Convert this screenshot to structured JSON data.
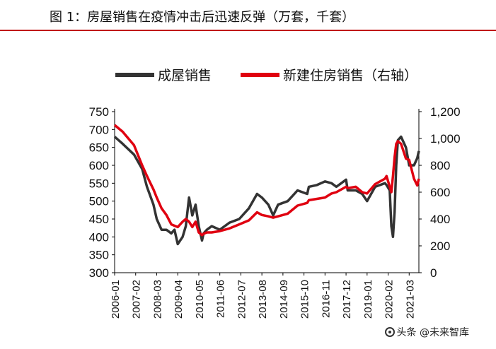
{
  "header": {
    "title": "图 1：房屋销售在疫情冲击后迅速反弹（万套，千套）"
  },
  "watermark": {
    "text": "头条 @未来智库"
  },
  "chart_data": {
    "type": "line",
    "title": "图 1：房屋销售在疫情冲击后迅速反弹（万套，千套）",
    "legend_position": "top",
    "x_tick_labels": [
      "2006-01",
      "2007-02",
      "2008-03",
      "2009-04",
      "2010-05",
      "2011-06",
      "2012-07",
      "2013-08",
      "2014-09",
      "2015-10",
      "2016-11",
      "2017-12",
      "2019-01",
      "2020-02",
      "2021-03"
    ],
    "y_left": {
      "ylim": [
        300,
        750
      ],
      "ticks": [
        "300",
        "350",
        "400",
        "450",
        "500",
        "550",
        "600",
        "650",
        "700",
        "750"
      ]
    },
    "y_right": {
      "ylim": [
        0,
        1200
      ],
      "ticks": [
        "0",
        "200",
        "400",
        "600",
        "800",
        "1,000",
        "1,200"
      ]
    },
    "series": [
      {
        "name": "成屋销售",
        "axis": "left",
        "color": "#333333",
        "x": [
          "2006-01",
          "2006-06",
          "2007-01",
          "2007-06",
          "2007-09",
          "2008-01",
          "2008-03",
          "2008-06",
          "2008-09",
          "2008-12",
          "2009-02",
          "2009-04",
          "2009-07",
          "2009-09",
          "2009-11",
          "2010-01",
          "2010-03",
          "2010-05",
          "2010-07",
          "2010-08",
          "2010-10",
          "2011-01",
          "2011-06",
          "2011-12",
          "2012-06",
          "2012-12",
          "2013-05",
          "2013-08",
          "2013-12",
          "2014-03",
          "2014-06",
          "2014-12",
          "2015-06",
          "2015-12",
          "2016-01",
          "2016-06",
          "2016-11",
          "2017-03",
          "2017-06",
          "2017-12",
          "2018-01",
          "2018-06",
          "2018-10",
          "2019-01",
          "2019-06",
          "2019-12",
          "2020-01",
          "2020-03",
          "2020-04",
          "2020-05",
          "2020-06",
          "2020-07",
          "2020-08",
          "2020-10",
          "2021-01",
          "2021-03",
          "2021-06",
          "2021-08",
          "2021-09"
        ],
        "values": [
          680,
          660,
          630,
          590,
          540,
          490,
          450,
          420,
          420,
          410,
          420,
          380,
          400,
          430,
          510,
          460,
          490,
          430,
          390,
          410,
          420,
          430,
          420,
          440,
          450,
          480,
          520,
          510,
          490,
          460,
          490,
          500,
          530,
          520,
          540,
          545,
          555,
          550,
          540,
          560,
          530,
          530,
          520,
          500,
          540,
          550,
          545,
          530,
          430,
          400,
          470,
          600,
          670,
          680,
          650,
          600,
          600,
          620,
          640
        ]
      },
      {
        "name": "新建住房销售（右轴）",
        "axis": "right",
        "color": "#e00010",
        "x": [
          "2006-01",
          "2006-06",
          "2007-01",
          "2007-06",
          "2007-09",
          "2008-01",
          "2008-03",
          "2008-06",
          "2008-09",
          "2008-12",
          "2009-02",
          "2009-04",
          "2009-07",
          "2009-09",
          "2009-11",
          "2010-01",
          "2010-03",
          "2010-05",
          "2010-07",
          "2010-08",
          "2010-10",
          "2011-01",
          "2011-06",
          "2011-12",
          "2012-06",
          "2012-12",
          "2013-05",
          "2013-08",
          "2013-12",
          "2014-03",
          "2014-06",
          "2014-12",
          "2015-06",
          "2015-12",
          "2016-01",
          "2016-06",
          "2016-11",
          "2017-03",
          "2017-06",
          "2017-12",
          "2018-01",
          "2018-06",
          "2018-10",
          "2019-01",
          "2019-06",
          "2019-12",
          "2020-01",
          "2020-03",
          "2020-04",
          "2020-05",
          "2020-06",
          "2020-07",
          "2020-08",
          "2020-10",
          "2021-01",
          "2021-03",
          "2021-06",
          "2021-08",
          "2021-09"
        ],
        "values": [
          1100,
          1050,
          950,
          800,
          720,
          620,
          560,
          480,
          430,
          360,
          350,
          340,
          380,
          400,
          380,
          340,
          380,
          300,
          280,
          290,
          300,
          300,
          310,
          330,
          360,
          390,
          450,
          430,
          420,
          410,
          420,
          440,
          500,
          520,
          540,
          550,
          560,
          590,
          600,
          640,
          630,
          640,
          600,
          590,
          660,
          700,
          720,
          640,
          600,
          720,
          860,
          960,
          980,
          960,
          850,
          840,
          700,
          650,
          700
        ]
      }
    ]
  }
}
